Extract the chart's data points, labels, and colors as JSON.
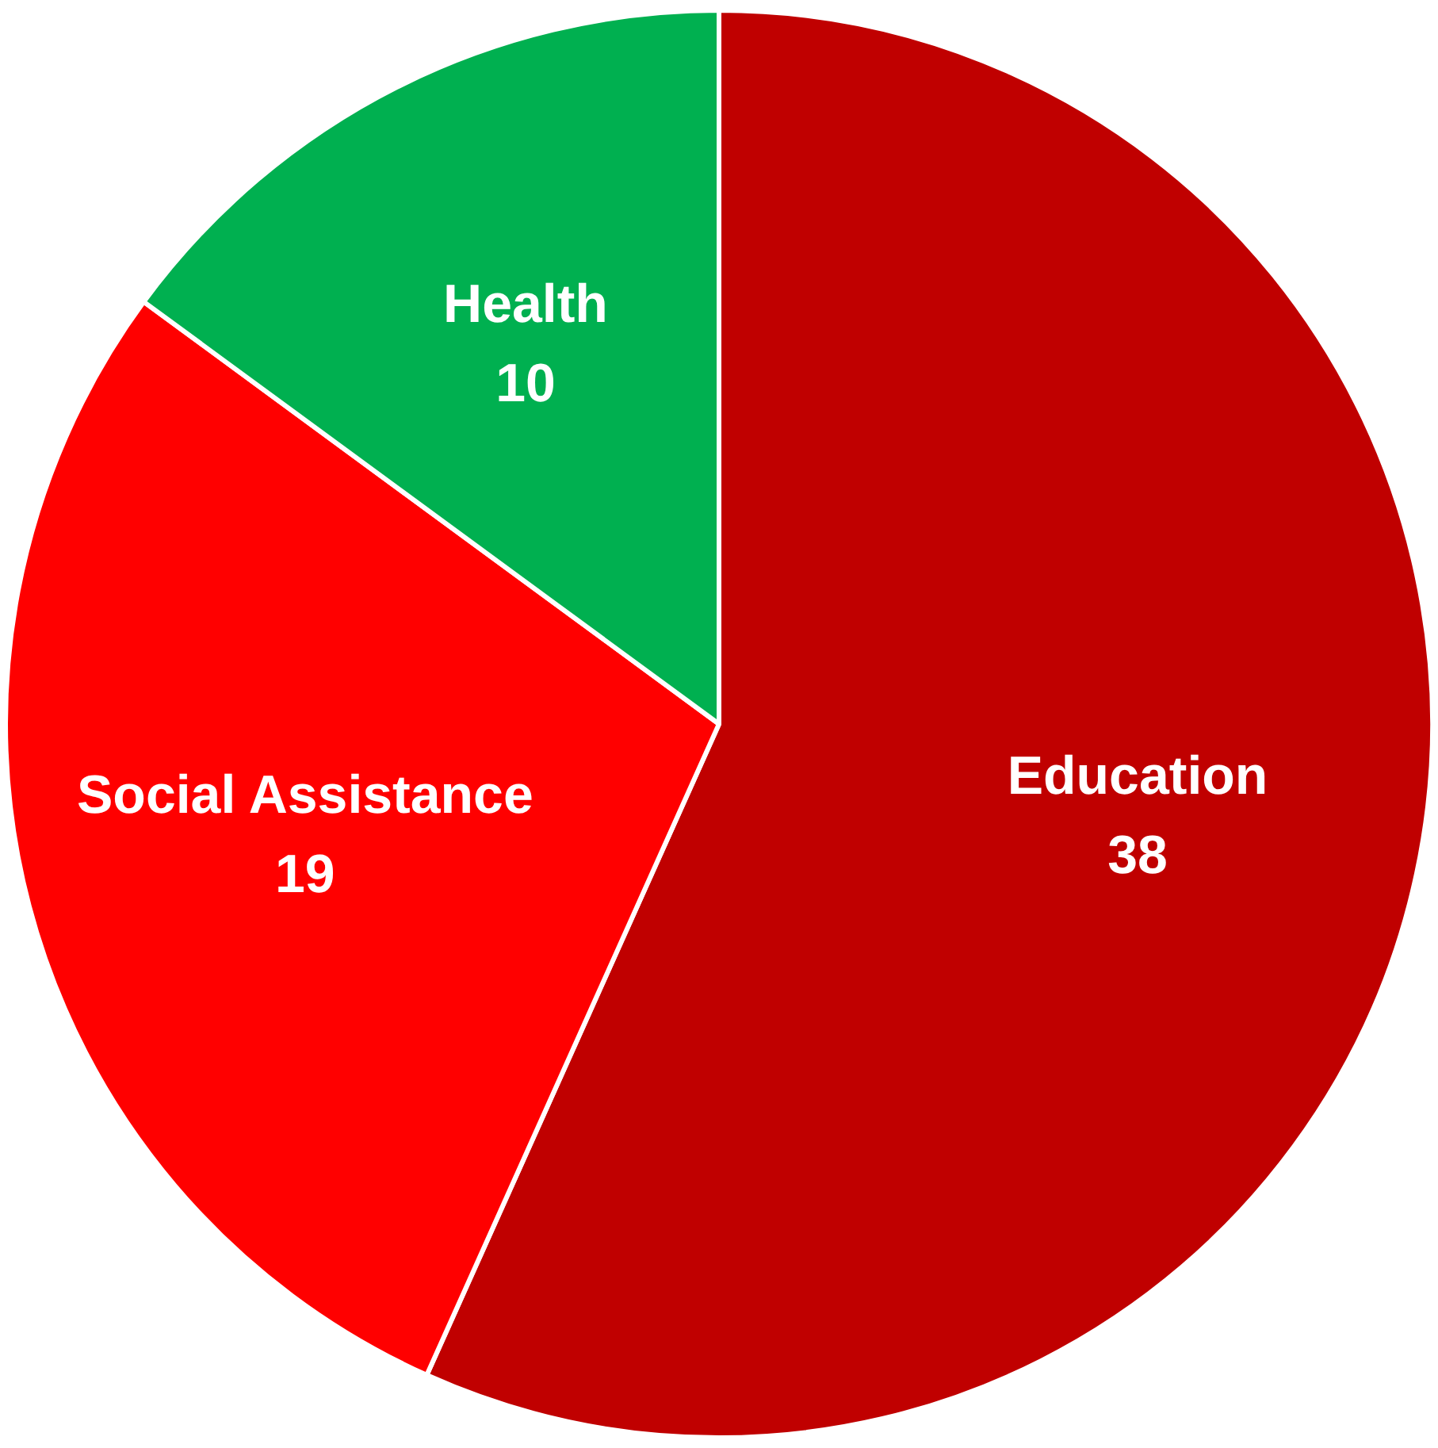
{
  "chart_data": {
    "type": "pie",
    "categories": [
      "Education",
      "Social Assistance",
      "Health"
    ],
    "values": [
      38,
      19,
      10
    ],
    "colors": [
      "#c00000",
      "#ff0000",
      "#00b050"
    ],
    "data_labels": true,
    "legend": false
  }
}
